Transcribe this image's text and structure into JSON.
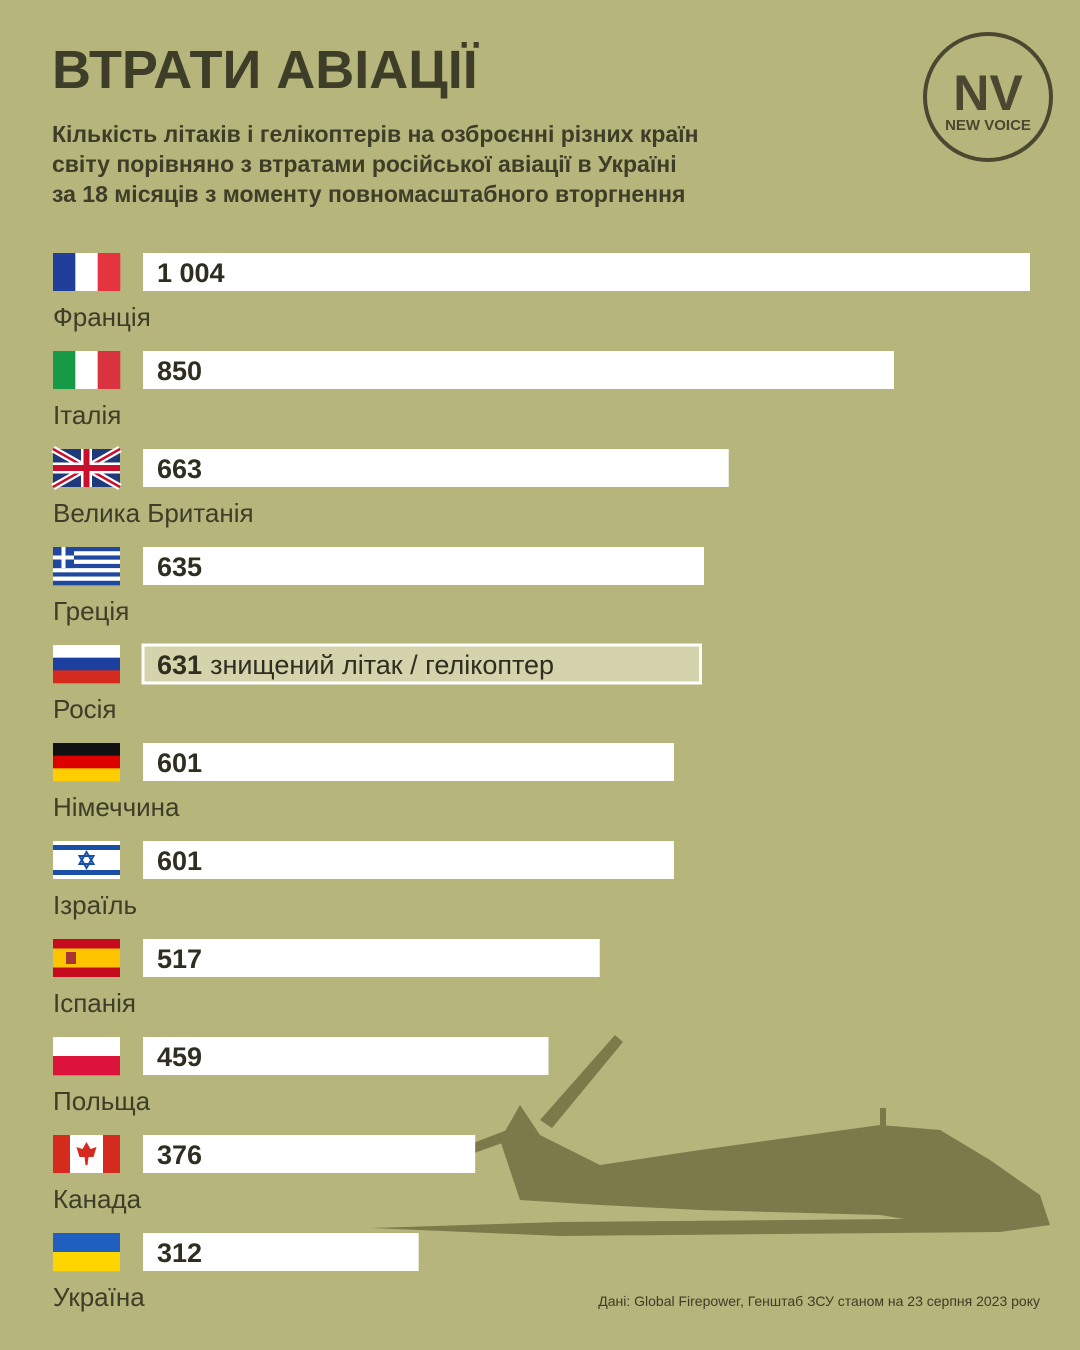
{
  "chart_data": {
    "type": "bar",
    "orientation": "horizontal",
    "title": "ВТРАТИ АВІАЦІЇ",
    "subtitle": [
      "Кількість літаків і гелікоптерів на озброєнні різних країн",
      "світу порівняно з втратами російської авіації в Україні",
      "за 18 місяців з моменту повномасштабного вторгнення"
    ],
    "categories": [
      "Франція",
      "Італія",
      "Велика Британія",
      "Греція",
      "Росія",
      "Німеччина",
      "Ізраїль",
      "Іспанія",
      "Польща",
      "Канада",
      "Україна"
    ],
    "values": [
      1004,
      850,
      663,
      635,
      631,
      601,
      601,
      517,
      459,
      376,
      312
    ],
    "value_labels": [
      "1 004",
      "850",
      "663",
      "635",
      "631",
      "601",
      "601",
      "517",
      "459",
      "376",
      "312"
    ],
    "colors": [
      "#ffffff",
      "#ffffff",
      "#ffffff",
      "#ffffff",
      "#d4d3ab",
      "#ffffff",
      "#ffffff",
      "#ffffff",
      "#ffffff",
      "#ffffff",
      "#ffffff"
    ],
    "annotations": [
      {
        "category": "Росія",
        "text": "знищений літак / гелікоптер"
      }
    ],
    "source": "Дані: Global Firepower, Генштаб ЗСУ станом на 23 серпня 2023 року",
    "logo": {
      "mark": "NV",
      "name": "NEW VOICE"
    }
  }
}
